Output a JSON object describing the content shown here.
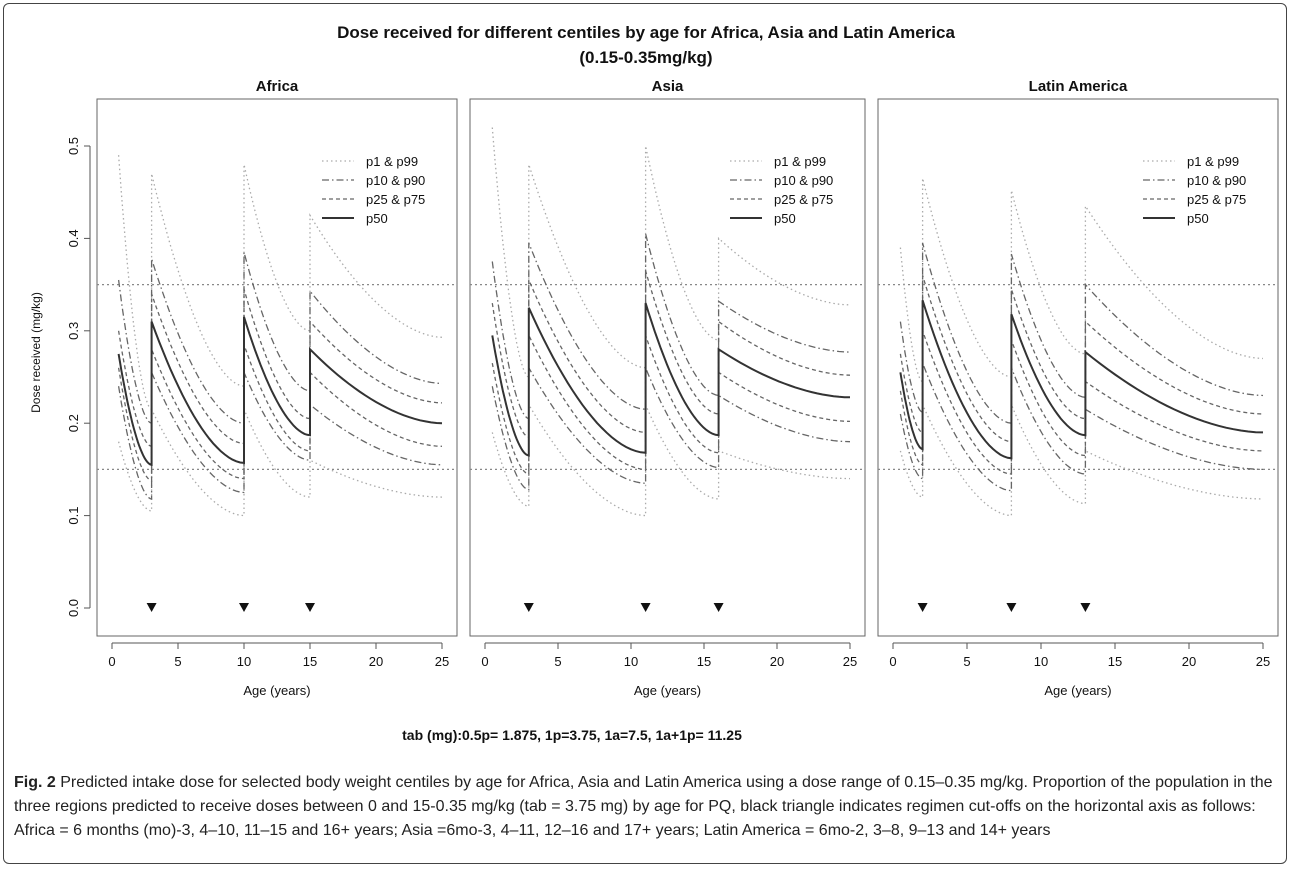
{
  "figure": {
    "title_line1": "Dose received for different centiles by age for Africa, Asia and Latin America",
    "title_line2": "(0.15-0.35mg/kg)",
    "footer_note": "tab (mg):0.5p= 1.875, 1p=3.75, 1a=7.5, 1a+1p= 11.25",
    "caption_label": "Fig. 2",
    "caption_text": " Predicted intake dose for selected body weight centiles by age for Africa, Asia and Latin America using a dose range of 0.15–0.35 mg/kg. Proportion of the population in the three regions predicted to receive doses between 0 and 15-0.35 mg/kg (tab = 3.75 mg) by age for PQ, black triangle indicates regimen cut-offs on the horizontal axis as follows: Africa = 6 months (mo)-3, 4–10, 11–15 and 16+ years; Asia =6mo-3, 4–11, 12–16 and 17+ years; Latin America = 6mo-2, 3–8, 9–13 and 14+ years"
  },
  "colors": {
    "axis": "#555555",
    "frame": "#666666",
    "text": "#111111",
    "p1_p99": "#aaaaaa",
    "p10_p90": "#666666",
    "p25_p75": "#666666",
    "p50": "#333333",
    "threshold": "#888888",
    "marker": "#111111"
  },
  "chart_data": [
    {
      "type": "line",
      "title": "Africa",
      "xlabel": "Age (years)",
      "ylabel": "Dose received (mg/kg)",
      "xlim": [
        0,
        25
      ],
      "ylim": [
        0,
        0.5
      ],
      "xticks": [
        "0",
        "5",
        "10",
        "15",
        "20",
        "25"
      ],
      "yticks": [
        "0.0",
        "0.1",
        "0.2",
        "0.3",
        "0.4",
        "0.5"
      ],
      "thresholds": [
        0.15,
        0.35
      ],
      "cutoffs": [
        3,
        10,
        15
      ],
      "legend": [
        "p1 & p99",
        "p10 & p90",
        "p25 & p75",
        "p50"
      ],
      "segments": [
        {
          "start": 0.5,
          "end": 3,
          "p1": [
            0.18,
            0.105
          ],
          "p10": [
            0.24,
            0.118
          ],
          "p25": [
            0.26,
            0.138
          ],
          "p50": [
            0.275,
            0.155
          ],
          "p75": [
            0.3,
            0.175
          ],
          "p90": [
            0.355,
            0.2
          ],
          "p99": [
            0.49,
            0.215
          ]
        },
        {
          "start": 3,
          "end": 10,
          "p1": [
            0.215,
            0.1
          ],
          "p10": [
            0.255,
            0.125
          ],
          "p25": [
            0.28,
            0.14
          ],
          "p50": [
            0.31,
            0.157
          ],
          "p75": [
            0.34,
            0.178
          ],
          "p90": [
            0.378,
            0.2
          ],
          "p99": [
            0.47,
            0.24
          ]
        },
        {
          "start": 10,
          "end": 15,
          "p1": [
            0.215,
            0.12
          ],
          "p10": [
            0.255,
            0.16
          ],
          "p25": [
            0.285,
            0.17
          ],
          "p50": [
            0.315,
            0.187
          ],
          "p75": [
            0.345,
            0.205
          ],
          "p90": [
            0.385,
            0.235
          ],
          "p99": [
            0.48,
            0.3
          ]
        },
        {
          "start": 15,
          "end": 25,
          "p1": [
            0.16,
            0.12
          ],
          "p10": [
            0.22,
            0.155
          ],
          "p25": [
            0.255,
            0.175
          ],
          "p50": [
            0.28,
            0.2
          ],
          "p75": [
            0.31,
            0.222
          ],
          "p90": [
            0.343,
            0.243
          ],
          "p99": [
            0.425,
            0.293
          ]
        }
      ]
    },
    {
      "type": "line",
      "title": "Asia",
      "xlabel": "Age (years)",
      "ylabel": "",
      "xlim": [
        0,
        25
      ],
      "ylim": [
        0,
        0.5
      ],
      "xticks": [
        "0",
        "5",
        "10",
        "15",
        "20",
        "25"
      ],
      "thresholds": [
        0.15,
        0.35
      ],
      "cutoffs": [
        3,
        11,
        16
      ],
      "legend": [
        "p1 & p99",
        "p10 & p90",
        "p25 & p75",
        "p50"
      ],
      "segments": [
        {
          "start": 0.5,
          "end": 3,
          "p1": [
            0.19,
            0.11
          ],
          "p10": [
            0.24,
            0.128
          ],
          "p25": [
            0.265,
            0.145
          ],
          "p50": [
            0.295,
            0.165
          ],
          "p75": [
            0.33,
            0.185
          ],
          "p90": [
            0.375,
            0.205
          ],
          "p99": [
            0.52,
            0.25
          ]
        },
        {
          "start": 3,
          "end": 11,
          "p1": [
            0.22,
            0.1
          ],
          "p10": [
            0.26,
            0.135
          ],
          "p25": [
            0.295,
            0.15
          ],
          "p50": [
            0.325,
            0.168
          ],
          "p75": [
            0.355,
            0.19
          ],
          "p90": [
            0.395,
            0.215
          ],
          "p99": [
            0.48,
            0.26
          ]
        },
        {
          "start": 11,
          "end": 16,
          "p1": [
            0.22,
            0.118
          ],
          "p10": [
            0.26,
            0.152
          ],
          "p25": [
            0.295,
            0.168
          ],
          "p50": [
            0.33,
            0.187
          ],
          "p75": [
            0.365,
            0.21
          ],
          "p90": [
            0.405,
            0.23
          ],
          "p99": [
            0.5,
            0.29
          ]
        },
        {
          "start": 16,
          "end": 25,
          "p1": [
            0.17,
            0.14
          ],
          "p10": [
            0.23,
            0.18
          ],
          "p25": [
            0.255,
            0.202
          ],
          "p50": [
            0.28,
            0.228
          ],
          "p75": [
            0.31,
            0.252
          ],
          "p90": [
            0.332,
            0.277
          ],
          "p99": [
            0.4,
            0.328
          ]
        }
      ]
    },
    {
      "type": "line",
      "title": "Latin America",
      "xlabel": "Age (years)",
      "ylabel": "",
      "xlim": [
        0,
        25
      ],
      "ylim": [
        0,
        0.5
      ],
      "xticks": [
        "0",
        "5",
        "10",
        "15",
        "20",
        "25"
      ],
      "thresholds": [
        0.15,
        0.35
      ],
      "cutoffs": [
        2,
        8,
        13
      ],
      "legend": [
        "p1 & p99",
        "p10 & p90",
        "p25 & p75",
        "p50"
      ],
      "segments": [
        {
          "start": 0.5,
          "end": 2,
          "p1": [
            0.17,
            0.12
          ],
          "p10": [
            0.21,
            0.14
          ],
          "p25": [
            0.235,
            0.155
          ],
          "p50": [
            0.255,
            0.172
          ],
          "p75": [
            0.275,
            0.19
          ],
          "p90": [
            0.31,
            0.212
          ],
          "p99": [
            0.39,
            0.245
          ]
        },
        {
          "start": 2,
          "end": 8,
          "p1": [
            0.22,
            0.1
          ],
          "p10": [
            0.265,
            0.127
          ],
          "p25": [
            0.3,
            0.145
          ],
          "p50": [
            0.333,
            0.162
          ],
          "p75": [
            0.36,
            0.18
          ],
          "p90": [
            0.395,
            0.2
          ],
          "p99": [
            0.465,
            0.25
          ]
        },
        {
          "start": 8,
          "end": 13,
          "p1": [
            0.22,
            0.113
          ],
          "p10": [
            0.26,
            0.145
          ],
          "p25": [
            0.29,
            0.165
          ],
          "p50": [
            0.318,
            0.187
          ],
          "p75": [
            0.345,
            0.205
          ],
          "p90": [
            0.383,
            0.228
          ],
          "p99": [
            0.452,
            0.275
          ]
        },
        {
          "start": 13,
          "end": 25,
          "p1": [
            0.17,
            0.118
          ],
          "p10": [
            0.215,
            0.15
          ],
          "p25": [
            0.245,
            0.17
          ],
          "p50": [
            0.277,
            0.19
          ],
          "p75": [
            0.31,
            0.21
          ],
          "p90": [
            0.35,
            0.23
          ],
          "p99": [
            0.435,
            0.27
          ]
        }
      ]
    }
  ]
}
